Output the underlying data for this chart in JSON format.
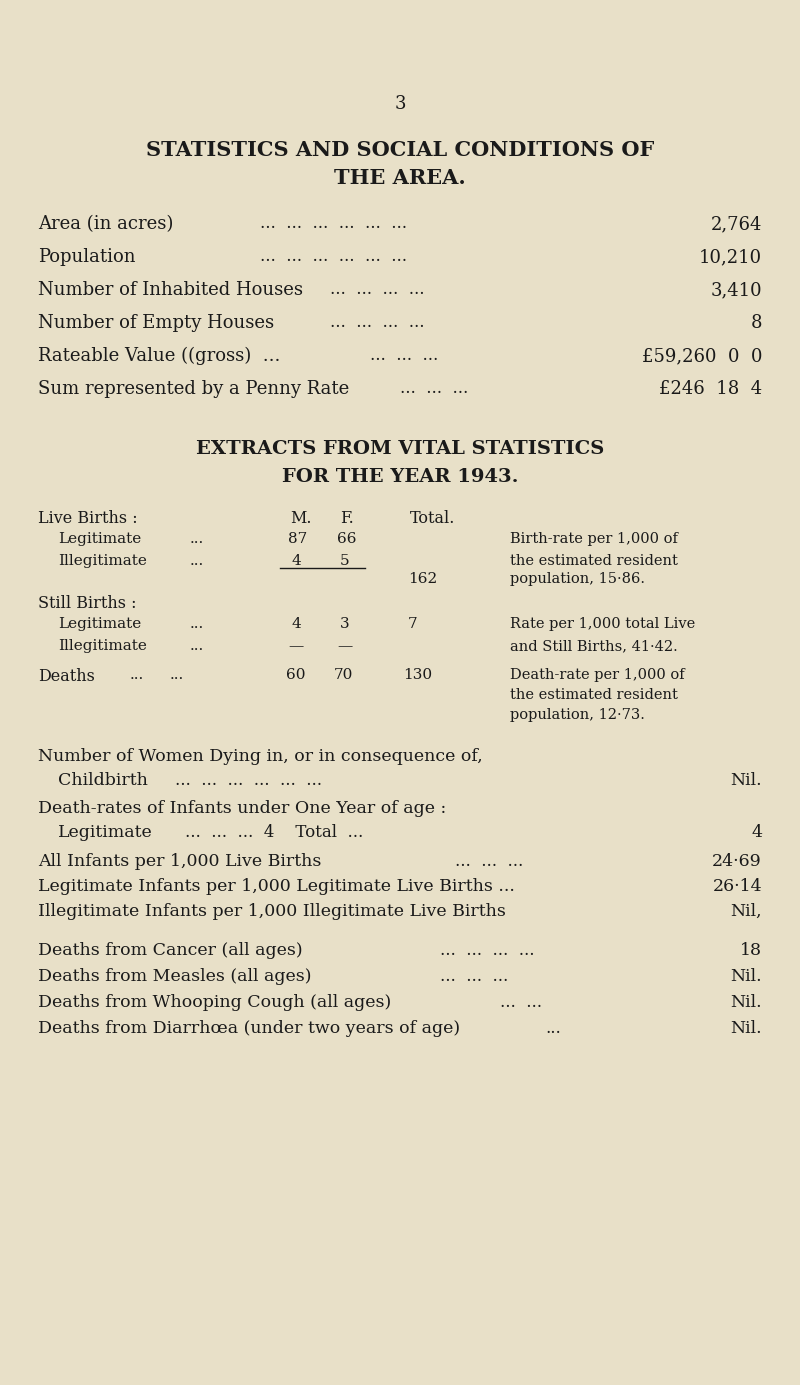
{
  "bg_color": "#e8e0c8",
  "text_color": "#1a1a1a",
  "page_number": "3",
  "title1": "STATISTICS AND SOCIAL CONDITIONS OF",
  "title2": "THE AREA.",
  "title3": "EXTRACTS FROM VITAL STATISTICS",
  "title4": "FOR THE YEAR 1943.",
  "birthrate_note_lines": [
    "Birth-rate per 1,000 of",
    "the estimated resident",
    "population, 15·86."
  ],
  "stillrate_note_lines": [
    "Rate per 1,000 total Live",
    "and Still Births, 41·42."
  ],
  "deathrate_note_lines": [
    "Death-rate per 1,000 of",
    "the estimated resident",
    "population, 12·73."
  ]
}
